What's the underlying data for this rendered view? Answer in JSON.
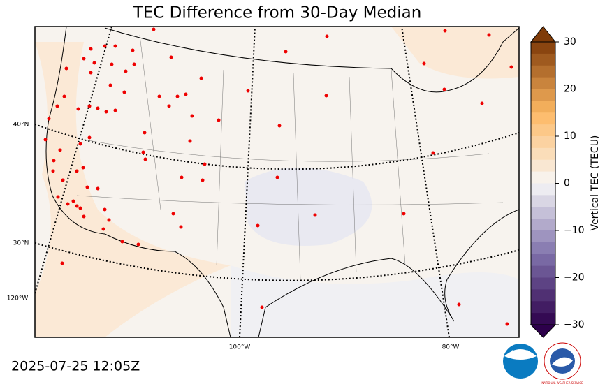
{
  "title": "TEC Difference from 30-Day Median",
  "colorbar": {
    "label": "Vertical TEC (TECU)",
    "lim": [
      -30,
      30
    ],
    "ticks": [
      {
        "value": -30,
        "label": "−30"
      },
      {
        "value": -20,
        "label": "−20"
      },
      {
        "value": -10,
        "label": "−10"
      },
      0,
      10,
      20,
      30
    ]
  },
  "map": {
    "lat_labels": [
      "40°N",
      "30°N"
    ],
    "lon_labels": [
      "120°W",
      "100°W",
      "80°W"
    ]
  },
  "timestamp": "2025-07-25 12:05Z",
  "logos": {
    "noaa": "NOAA",
    "nws": "NATIONAL WEATHER SERVICE"
  }
}
